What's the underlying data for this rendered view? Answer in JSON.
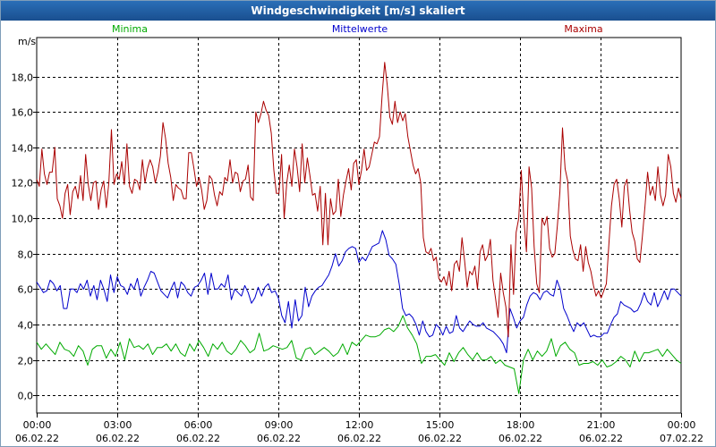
{
  "window": {
    "title": "Windgeschwindigkeit [m/s] skaliert"
  },
  "chart_data": {
    "type": "line",
    "title": "Windgeschwindigkeit [m/s] skaliert",
    "ylabel": "m/s",
    "xlabel": "",
    "ylim": [
      -1.0,
      20.2
    ],
    "xlim": [
      0,
      24
    ],
    "yticks": [
      {
        "value": 0,
        "label": "0,0"
      },
      {
        "value": 2,
        "label": "2,0"
      },
      {
        "value": 4,
        "label": "4,0"
      },
      {
        "value": 6,
        "label": "6,0"
      },
      {
        "value": 8,
        "label": "8,0"
      },
      {
        "value": 10,
        "label": "10,0"
      },
      {
        "value": 12,
        "label": "12,0"
      },
      {
        "value": 14,
        "label": "14,0"
      },
      {
        "value": 16,
        "label": "16,0"
      },
      {
        "value": 18,
        "label": "18,0"
      }
    ],
    "xticks": [
      {
        "value": 0,
        "time": "00:00",
        "date": "06.02.22"
      },
      {
        "value": 3,
        "time": "03:00",
        "date": "06.02.22"
      },
      {
        "value": 6,
        "time": "06:00",
        "date": "06.02.22"
      },
      {
        "value": 9,
        "time": "09:00",
        "date": "06.02.22"
      },
      {
        "value": 12,
        "time": "12:00",
        "date": "06.02.22"
      },
      {
        "value": 15,
        "time": "15:00",
        "date": "06.02.22"
      },
      {
        "value": 18,
        "time": "18:00",
        "date": "06.02.22"
      },
      {
        "value": 21,
        "time": "21:00",
        "date": "06.02.22"
      },
      {
        "value": 24,
        "time": "00:00",
        "date": "07.02.22"
      }
    ],
    "series": [
      {
        "name": "Minima",
        "color": "#00aa00",
        "values": [
          3.0,
          2.6,
          2.9,
          2.6,
          2.3,
          3.0,
          2.6,
          2.5,
          2.2,
          2.8,
          2.5,
          1.7,
          2.6,
          2.8,
          2.8,
          2.1,
          2.6,
          2.2,
          3.0,
          2.0,
          3.2,
          2.7,
          2.8,
          2.6,
          2.9,
          2.3,
          2.7,
          2.7,
          2.9,
          2.5,
          2.9,
          2.4,
          2.2,
          2.9,
          2.5,
          3.1,
          2.7,
          2.2,
          2.9,
          2.6,
          3.0,
          2.5,
          2.3,
          2.6,
          3.1,
          2.8,
          2.4,
          2.6,
          3.5,
          2.5,
          2.6,
          2.8,
          2.7,
          2.6,
          2.7,
          3.1,
          2.1,
          2.0,
          2.6,
          2.7,
          2.3,
          2.5,
          2.7,
          2.5,
          2.2,
          2.4,
          2.9,
          2.3,
          3.0,
          2.8,
          3.1,
          3.4,
          3.3,
          3.3,
          3.4,
          3.7,
          3.8,
          3.6,
          3.9,
          4.5,
          3.8,
          3.4,
          2.9,
          1.8,
          2.2,
          2.2,
          2.3,
          2.0,
          1.7,
          2.4,
          1.9,
          2.4,
          2.7,
          2.3,
          2.0,
          2.4,
          2.0,
          2.0,
          2.2,
          1.8,
          2.0,
          1.7,
          1.6,
          1.5,
          0.1,
          2.0,
          2.6,
          2.0,
          2.5,
          2.2,
          2.5,
          3.2,
          2.2,
          2.8,
          3.0,
          2.6,
          2.4,
          1.7,
          1.8,
          1.8,
          1.9,
          1.7,
          2.0,
          1.6,
          1.7,
          1.9,
          2.2,
          2.0,
          1.6,
          2.5,
          1.9,
          2.4,
          2.4,
          2.5,
          2.6,
          2.2,
          2.6,
          2.3,
          2.0,
          1.8
        ]
      },
      {
        "name": "Mittelwerte",
        "color": "#0000cc",
        "values": [
          6.4,
          6.1,
          5.8,
          5.9,
          6.5,
          6.3,
          5.9,
          6.2,
          4.9,
          4.9,
          6.0,
          6.0,
          5.8,
          6.3,
          6.0,
          6.5,
          5.6,
          6.2,
          5.4,
          6.5,
          6.0,
          5.3,
          6.8,
          5.8,
          6.7,
          6.2,
          6.1,
          5.7,
          6.3,
          6.0,
          6.6,
          5.6,
          6.1,
          6.5,
          7.0,
          6.9,
          6.4,
          5.9,
          5.7,
          5.5,
          6.0,
          6.4,
          5.5,
          6.4,
          6.2,
          5.8,
          5.6,
          6.1,
          6.2,
          6.5,
          6.9,
          5.7,
          6.9,
          6.0,
          6.0,
          6.3,
          6.1,
          6.8,
          5.4,
          6.0,
          5.8,
          5.6,
          6.2,
          5.8,
          5.2,
          5.5,
          6.1,
          5.6,
          6.1,
          6.3,
          5.8,
          5.9,
          5.5,
          4.5,
          4.1,
          5.3,
          3.8,
          5.4,
          4.2,
          4.5,
          6.1,
          5.0,
          5.6,
          5.9,
          6.1,
          6.2,
          6.5,
          6.8,
          7.3,
          8.0,
          7.3,
          7.6,
          8.1,
          8.3,
          8.4,
          8.3,
          7.5,
          7.8,
          7.6,
          8.0,
          8.4,
          8.5,
          8.6,
          9.3,
          8.8,
          7.9,
          7.7,
          7.4,
          6.3,
          4.9,
          4.5,
          4.6,
          4.4,
          4.0,
          3.4,
          4.2,
          3.6,
          3.3,
          3.4,
          4.0,
          3.8,
          3.4,
          3.9,
          3.5,
          3.6,
          4.5,
          3.8,
          3.6,
          3.9,
          4.2,
          4.0,
          3.9,
          3.9,
          4.1,
          3.8,
          3.7,
          3.6,
          3.4,
          3.2,
          2.9,
          2.4,
          4.9,
          4.4,
          3.8,
          4.2,
          4.4,
          5.1,
          5.6,
          5.8,
          5.7,
          5.4,
          5.8,
          5.9,
          5.7,
          5.6,
          6.5,
          6.0,
          4.9,
          4.5,
          4.0,
          3.6,
          4.1,
          3.9,
          4.1,
          3.7,
          3.3,
          3.4,
          3.3,
          3.3,
          3.5,
          3.5,
          4.0,
          4.4,
          4.6,
          5.3,
          5.1,
          5.0,
          4.9,
          4.7,
          4.8,
          5.2,
          5.8,
          5.3,
          5.1,
          5.8,
          5.0,
          5.4,
          5.9,
          5.4,
          6.0,
          6.0,
          5.8,
          5.6
        ]
      },
      {
        "name": "Maxima",
        "color": "#aa0000",
        "values": [
          12.2,
          11.8,
          13.9,
          12.5,
          11.9,
          12.6,
          12.6,
          14.0,
          11.1,
          10.7,
          10.0,
          11.4,
          11.9,
          10.2,
          11.5,
          11.8,
          11.1,
          12.4,
          11.0,
          13.6,
          11.9,
          11.0,
          12.0,
          12.1,
          10.5,
          11.6,
          12.1,
          10.6,
          12.0,
          15.0,
          11.9,
          12.5,
          12.2,
          13.2,
          11.9,
          14.2,
          11.8,
          11.4,
          12.2,
          12.1,
          11.6,
          13.3,
          12.0,
          12.8,
          13.3,
          12.9,
          12.0,
          12.6,
          13.5,
          15.4,
          14.5,
          13.1,
          12.3,
          11.0,
          11.9,
          11.7,
          11.6,
          11.1,
          11.1,
          13.7,
          13.7,
          12.8,
          11.8,
          12.3,
          11.6,
          10.5,
          11.0,
          12.4,
          12.2,
          11.3,
          10.7,
          11.5,
          11.3,
          12.3,
          12.1,
          13.3,
          12.0,
          12.6,
          12.5,
          11.5,
          12.1,
          12.2,
          13.0,
          11.2,
          11.0,
          16.0,
          15.4,
          15.9,
          16.6,
          16.1,
          15.8,
          14.8,
          12.7,
          11.4,
          11.4,
          13.6,
          10.0,
          12.0,
          13.0,
          11.8,
          13.9,
          12.9,
          11.5,
          14.2,
          12.0,
          13.4,
          12.4,
          11.3,
          11.4,
          10.4,
          11.8,
          8.5,
          11.4,
          8.5,
          11.1,
          10.2,
          10.4,
          12.2,
          10.1,
          11.3,
          12.1,
          12.8,
          11.6,
          13.1,
          13.3,
          11.9,
          12.7,
          13.9,
          12.7,
          12.9,
          13.6,
          14.3,
          14.2,
          14.6,
          16.9,
          18.8,
          17.5,
          15.7,
          15.3,
          16.6,
          15.4,
          16.0,
          15.5,
          15.9,
          14.6,
          13.8,
          13.0,
          12.5,
          12.8,
          12.0,
          8.9,
          8.1,
          8.0,
          8.3,
          7.6,
          7.8,
          6.6,
          6.4,
          6.7,
          6.2,
          7.0,
          5.9,
          7.4,
          7.6,
          7.0,
          8.9,
          7.6,
          6.1,
          7.0,
          6.8,
          7.3,
          6.0,
          8.1,
          8.5,
          7.6,
          7.9,
          8.8,
          6.5,
          5.5,
          4.4,
          6.9,
          5.8,
          5.0,
          3.3,
          8.5,
          5.7,
          9.2,
          10.0,
          12.7,
          10.0,
          8.1,
          12.9,
          11.7,
          8.4,
          6.3,
          5.8,
          10.0,
          9.6,
          10.1,
          8.3,
          7.8,
          8.0,
          9.6,
          11.5,
          15.1,
          12.8,
          12.1,
          9.0,
          8.2,
          7.7,
          7.6,
          8.5,
          7.0,
          8.4,
          7.5,
          7.0,
          6.2,
          5.6,
          5.9,
          5.5,
          5.9,
          6.3,
          8.6,
          10.7,
          11.9,
          12.2,
          11.1,
          9.5,
          11.8,
          12.2,
          10.5,
          9.2,
          8.7,
          7.7,
          7.5,
          9.0,
          10.7,
          12.6,
          11.3,
          11.8,
          11.0,
          12.9,
          11.3,
          10.7,
          11.3,
          13.6,
          12.9,
          11.4,
          10.9,
          11.7,
          11.1
        ]
      }
    ]
  }
}
